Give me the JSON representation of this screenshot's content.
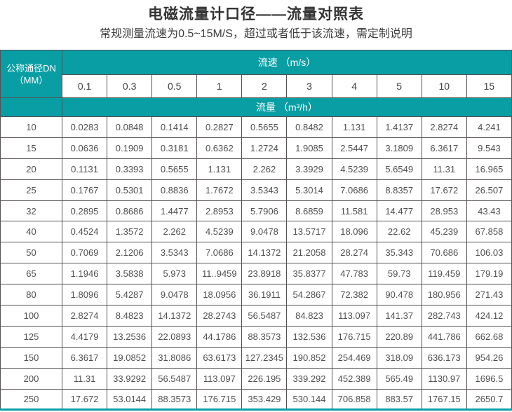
{
  "page": {
    "title": "电磁流量计口径——流量对照表",
    "subtitle": "常规测量流速为0.5~15M/S，超过或者低于该流速，需定制说明"
  },
  "colors": {
    "header_teal": "#089ea4",
    "cell_border": "#565151",
    "title_text": "#333333",
    "cell_text": "#4f4f4f"
  },
  "table": {
    "corner_header_line1": "公称通径DN",
    "corner_header_line2": "（MM）",
    "velocity_header": "流速 （m/s）",
    "flow_header": "流量 （m³/h）",
    "velocity_columns": [
      "0.1",
      "0.3",
      "0.5",
      "1",
      "2",
      "3",
      "4",
      "5",
      "10",
      "15"
    ],
    "rows": [
      {
        "dn": "10",
        "values": [
          "0.0283",
          "0.0848",
          "0.1414",
          "0.2827",
          "0.5655",
          "0.8482",
          "1.131",
          "1.4137",
          "2.8274",
          "4.241"
        ]
      },
      {
        "dn": "15",
        "values": [
          "0.0636",
          "0.1909",
          "0.3181",
          "0.6362",
          "1.2724",
          "1.9085",
          "2.5447",
          "3.1809",
          "6.3617",
          "9.543"
        ]
      },
      {
        "dn": "20",
        "values": [
          "0.1131",
          "0.3393",
          "0.5655",
          "1.131",
          "2.262",
          "3.3929",
          "4.5239",
          "5.6549",
          "11.31",
          "16.965"
        ]
      },
      {
        "dn": "25",
        "values": [
          "0.1767",
          "0.5301",
          "0.8836",
          "1.7672",
          "3.5343",
          "5.3014",
          "7.0686",
          "8.8357",
          "17.672",
          "26.507"
        ]
      },
      {
        "dn": "32",
        "values": [
          "0.2895",
          "0.8686",
          "1.4477",
          "2.8953",
          "5.7906",
          "8.6859",
          "11.581",
          "14.477",
          "28.953",
          "43.43"
        ]
      },
      {
        "dn": "40",
        "values": [
          "0.4524",
          "1.3572",
          "2.262",
          "4.5239",
          "9.0478",
          "13.5717",
          "18.096",
          "22.62",
          "45.239",
          "67.858"
        ]
      },
      {
        "dn": "50",
        "values": [
          "0.7069",
          "2.1206",
          "3.5343",
          "7.0686",
          "14.1372",
          "21.2058",
          "28.274",
          "35.343",
          "70.686",
          "106.03"
        ]
      },
      {
        "dn": "65",
        "values": [
          "1.1946",
          "3.5838",
          "5.973",
          "11..9459",
          "23.8918",
          "35.8377",
          "47.783",
          "59.73",
          "119.459",
          "179.19"
        ]
      },
      {
        "dn": "80",
        "values": [
          "1.8096",
          "5.4287",
          "9.0478",
          "18.0956",
          "36.1911",
          "54.2867",
          "72.382",
          "90.478",
          "180.956",
          "271.43"
        ]
      },
      {
        "dn": "100",
        "values": [
          "2.8274",
          "8.4823",
          "14.1372",
          "28.2743",
          "56.5487",
          "84.823",
          "113.097",
          "141.37",
          "282.743",
          "424.12"
        ]
      },
      {
        "dn": "125",
        "values": [
          "4.4179",
          "13.2536",
          "22.0893",
          "44.1786",
          "88.3573",
          "132.536",
          "176.715",
          "220.89",
          "441.786",
          "662.68"
        ]
      },
      {
        "dn": "150",
        "values": [
          "6.3617",
          "19.0852",
          "31.8086",
          "63.6173",
          "127.2345",
          "190.852",
          "254.469",
          "318.09",
          "636.173",
          "954.26"
        ]
      },
      {
        "dn": "200",
        "values": [
          "11.31",
          "33.9292",
          "56.5487",
          "113.097",
          "226.195",
          "339.292",
          "452.389",
          "565.49",
          "1130.97",
          "1696.5"
        ]
      },
      {
        "dn": "250",
        "values": [
          "17.672",
          "53.0144",
          "88.3573",
          "176.715",
          "353.429",
          "530.144",
          "706.858",
          "883.57",
          "1767.15",
          "2650.7"
        ]
      }
    ]
  }
}
